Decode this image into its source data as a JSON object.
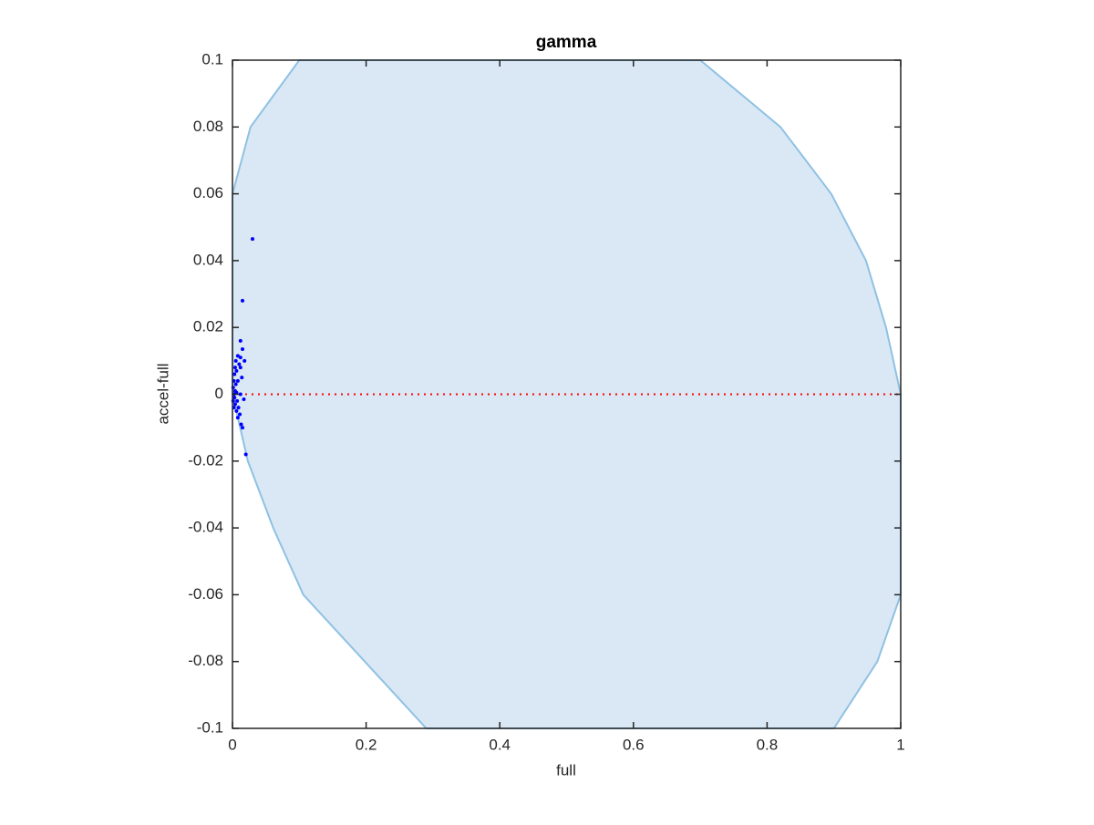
{
  "chart_data": {
    "type": "scatter",
    "title": "gamma",
    "x_label": "full",
    "y_label": "accel-full",
    "xlim": [
      0,
      1
    ],
    "ylim": [
      -0.1,
      0.1
    ],
    "xticks": [
      0,
      0.2,
      0.4,
      0.6,
      0.8,
      1
    ],
    "yticks": [
      -0.1,
      -0.08,
      -0.06,
      -0.04,
      -0.02,
      0,
      0.02,
      0.04,
      0.06,
      0.08,
      0.1
    ],
    "region": {
      "color": "#d9e8f4",
      "edge_color": "#8fc1e3",
      "x": [
        0,
        0.027,
        0.1,
        0.7,
        0.82,
        0.896,
        0.948,
        0.978,
        1,
        1,
        0.965,
        0.9,
        0.29,
        0.198,
        0.106,
        0.061,
        0.023,
        0
      ],
      "y": [
        0.06,
        0.08,
        0.1,
        0.1,
        0.08,
        0.06,
        0.04,
        0.02,
        0,
        -0.06,
        -0.08,
        -0.1,
        -0.1,
        -0.08,
        -0.06,
        -0.04,
        -0.02,
        0
      ]
    },
    "reference_line": {
      "y": 0,
      "color": "#ff0000"
    },
    "series": [
      {
        "color": "#0000ff",
        "x": [
          0.03,
          0.015,
          0.012,
          0.015,
          0.008,
          0.012,
          0.005,
          0.018,
          0.01,
          0.004,
          0.012,
          0.006,
          0.003,
          0.014,
          0.002,
          0.008,
          0.005,
          0.001,
          0.004,
          0.002,
          0.006,
          0.012,
          0.003,
          0.001,
          0.007,
          0.017,
          0.004,
          0.009,
          0.002,
          0.006,
          0.011,
          0.008,
          0.013,
          0.015,
          0.02
        ],
        "values": [
          0.0465,
          0.028,
          0.016,
          0.0135,
          0.0115,
          0.011,
          0.01,
          0.01,
          0.009,
          0.008,
          0.008,
          0.007,
          0.006,
          0.005,
          0.004,
          0.004,
          0.003,
          0.002,
          0.001,
          0,
          0.0005,
          0,
          -0.001,
          -0.002,
          -0.002,
          -0.0015,
          -0.003,
          -0.004,
          -0.004,
          -0.005,
          -0.006,
          -0.007,
          -0.009,
          -0.01,
          -0.018
        ]
      }
    ]
  }
}
